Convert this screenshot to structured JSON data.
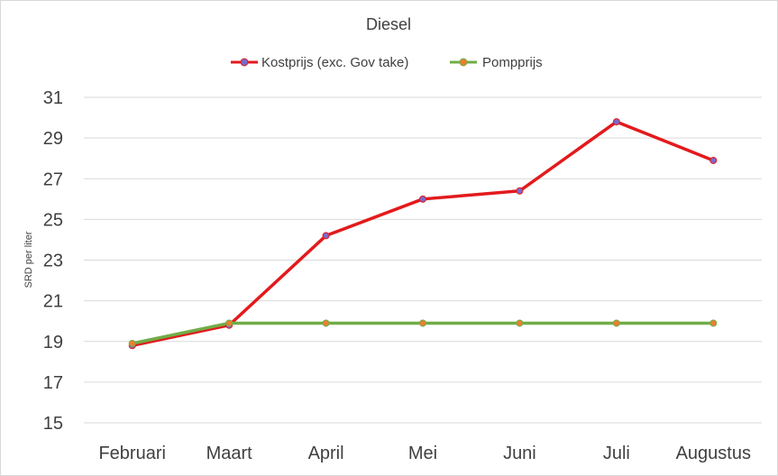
{
  "chart_data": {
    "type": "line",
    "title": "Diesel",
    "xlabel": "",
    "ylabel": "SRD per liter",
    "categories": [
      "Februari",
      "Maart",
      "April",
      "Mei",
      "Juni",
      "Juli",
      "Augustus"
    ],
    "ylim": [
      15,
      31
    ],
    "yticks": [
      15,
      17,
      19,
      21,
      23,
      25,
      27,
      29,
      31
    ],
    "grid": true,
    "legend_position": "top",
    "series": [
      {
        "name": "Kostprijs (exc. Gov take)",
        "values": [
          18.8,
          19.8,
          24.2,
          26.0,
          26.4,
          29.8,
          27.9
        ],
        "color": "#e31a1c",
        "marker_color": "#7b68c9"
      },
      {
        "name": "Pompprijs",
        "values": [
          18.9,
          19.9,
          19.9,
          19.9,
          19.9,
          19.9,
          19.9
        ],
        "color": "#70ad47",
        "marker_color": "#ed7d31"
      }
    ]
  }
}
